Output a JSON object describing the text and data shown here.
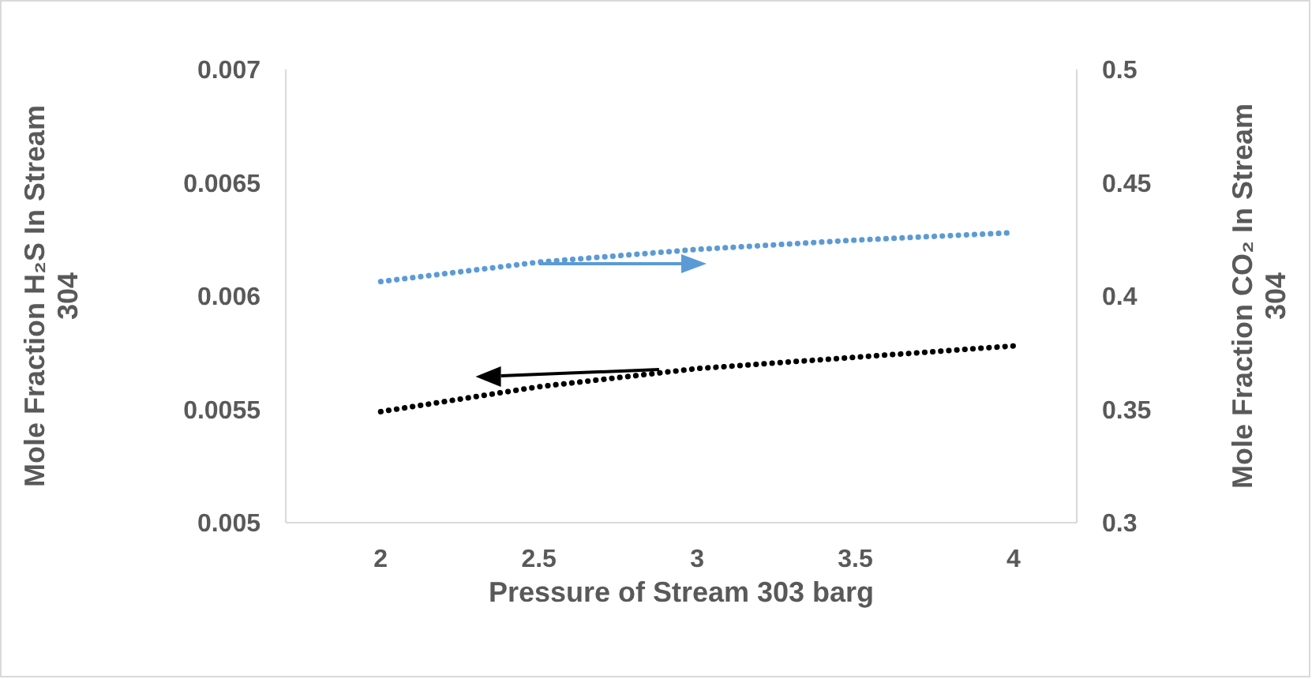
{
  "chart_data": {
    "type": "line",
    "xlabel": "Pressure of Stream 303 barg",
    "ylabel": "Mole Fraction H₂S In Stream 304",
    "y2label": "Mole Fraction CO₂ In Stream 304",
    "x": [
      2,
      2.5,
      3,
      3.5,
      4
    ],
    "series": [
      {
        "color": "#000000",
        "values": [
          0.00549,
          0.0056,
          0.00568,
          0.00573,
          0.00578
        ]
      },
      {
        "color": "#5b9bd5",
        "axis": "y2",
        "values": [
          0.4064,
          0.415,
          0.4206,
          0.4247,
          0.428
        ]
      }
    ],
    "xlim": [
      1.7,
      4.2
    ],
    "xticks": [
      2,
      2.5,
      3,
      3.5,
      4
    ],
    "ylim": [
      0.005,
      0.007
    ],
    "yticks": [
      0.005,
      0.0055,
      0.006,
      0.0065,
      0.007
    ],
    "y2lim": [
      0.3,
      0.5
    ],
    "y2ticks": [
      0.3,
      0.35,
      0.4,
      0.45,
      0.5
    ],
    "line_style": "dotted"
  }
}
